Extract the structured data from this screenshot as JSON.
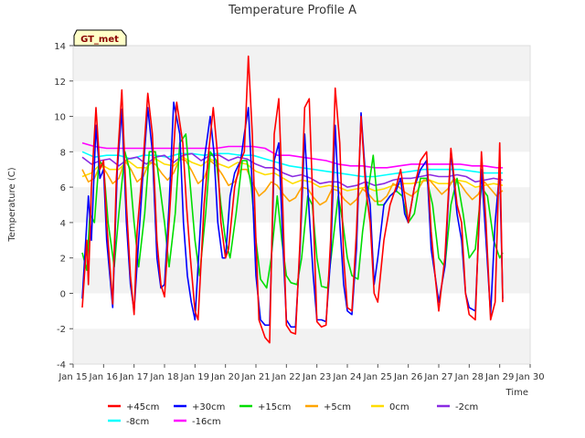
{
  "chart_data": {
    "type": "line",
    "title": "Temperature Profile A",
    "xlabel": "Time",
    "ylabel": "Temperature (C)",
    "badge": "GT_met",
    "ylim": [
      -4,
      14
    ],
    "yticks": [
      -4,
      -2,
      0,
      2,
      4,
      6,
      8,
      10,
      12,
      14
    ],
    "xlim": [
      15,
      30
    ],
    "xticks": [
      {
        "pos": 15,
        "label": "Jan 15"
      },
      {
        "pos": 16,
        "label": "Jan 16"
      },
      {
        "pos": 17,
        "label": "Jan 17"
      },
      {
        "pos": 18,
        "label": "Jan 18"
      },
      {
        "pos": 19,
        "label": "Jan 19"
      },
      {
        "pos": 20,
        "label": "Jan 20"
      },
      {
        "pos": 21,
        "label": "Jan 21"
      },
      {
        "pos": 22,
        "label": "Jan 22"
      },
      {
        "pos": 23,
        "label": "Jan 23"
      },
      {
        "pos": 24,
        "label": "Jan 24"
      },
      {
        "pos": 25,
        "label": "Jan 25"
      },
      {
        "pos": 26,
        "label": "Jan 26"
      },
      {
        "pos": 27,
        "label": "Jan 27"
      },
      {
        "pos": 28,
        "label": "Jan 28"
      },
      {
        "pos": 29,
        "label": "Jan 29"
      },
      {
        "pos": 30,
        "label": "Jan 30"
      }
    ],
    "grid": "alternating horizontal bands",
    "legend_position": "bottom",
    "series": [
      {
        "name": "+45cm",
        "color": "#ff0000",
        "x": [
          15.3,
          15.45,
          15.5,
          15.6,
          15.75,
          15.88,
          16.0,
          16.1,
          16.3,
          16.42,
          16.6,
          16.75,
          16.88,
          17.0,
          17.1,
          17.3,
          17.45,
          17.6,
          17.75,
          17.88,
          18.0,
          18.2,
          18.4,
          18.6,
          18.72,
          18.85,
          19.0,
          19.1,
          19.3,
          19.45,
          19.6,
          19.73,
          19.85,
          20.0,
          20.1,
          20.3,
          20.5,
          20.62,
          20.75,
          20.88,
          21.0,
          21.1,
          21.3,
          21.45,
          21.6,
          21.75,
          21.88,
          22.0,
          22.15,
          22.3,
          22.45,
          22.6,
          22.75,
          22.88,
          23.0,
          23.15,
          23.3,
          23.45,
          23.6,
          23.75,
          23.88,
          24.0,
          24.15,
          24.3,
          24.45,
          24.6,
          24.75,
          24.88,
          25.0,
          25.2,
          25.4,
          25.6,
          25.75,
          25.88,
          26.0,
          26.2,
          26.4,
          26.6,
          26.75,
          26.88,
          27.0,
          27.2,
          27.4,
          27.6,
          27.75,
          27.88,
          28.0,
          28.2,
          28.4,
          28.55,
          28.7,
          28.85,
          29.0,
          29.1
        ],
        "y": [
          -0.8,
          3.0,
          0.5,
          6.0,
          10.5,
          7.0,
          7.5,
          4.0,
          -0.6,
          6.5,
          11.5,
          5.0,
          1.0,
          -1.2,
          3.5,
          7.5,
          11.3,
          9.0,
          3.0,
          0.5,
          -0.2,
          5.5,
          10.8,
          8.5,
          5.0,
          2.0,
          -1.0,
          -1.5,
          5.0,
          8.0,
          10.5,
          8.0,
          4.0,
          2.0,
          2.5,
          6.0,
          7.5,
          8.0,
          13.4,
          9.0,
          3.0,
          -1.5,
          -2.5,
          -2.8,
          9.0,
          11.0,
          5.0,
          -1.8,
          -2.2,
          -2.3,
          3.0,
          10.5,
          11.0,
          4.5,
          -1.6,
          -1.9,
          -1.8,
          3.0,
          11.6,
          8.5,
          2.0,
          -0.8,
          -1.0,
          3.5,
          10.0,
          6.0,
          4.0,
          0.0,
          -0.5,
          3.0,
          5.0,
          6.0,
          7.0,
          5.5,
          4.0,
          6.0,
          7.5,
          8.0,
          3.5,
          1.0,
          -1.0,
          2.0,
          8.2,
          5.0,
          4.0,
          0.0,
          -1.2,
          -1.5,
          8.0,
          4.0,
          -1.5,
          -0.5,
          8.5,
          -0.5
        ]
      },
      {
        "name": "+30cm",
        "color": "#0000ff",
        "x": [
          15.3,
          15.5,
          15.6,
          15.75,
          15.88,
          16.0,
          16.1,
          16.3,
          16.45,
          16.6,
          16.75,
          16.88,
          17.0,
          17.15,
          17.3,
          17.45,
          17.6,
          17.75,
          17.88,
          18.0,
          18.15,
          18.3,
          18.5,
          18.62,
          18.75,
          18.88,
          19.0,
          19.15,
          19.3,
          19.5,
          19.62,
          19.75,
          19.9,
          20.0,
          20.15,
          20.3,
          20.5,
          20.62,
          20.75,
          20.88,
          21.0,
          21.15,
          21.3,
          21.45,
          21.6,
          21.75,
          21.88,
          22.0,
          22.15,
          22.3,
          22.45,
          22.6,
          22.75,
          22.88,
          23.0,
          23.15,
          23.3,
          23.45,
          23.6,
          23.75,
          23.88,
          24.0,
          24.15,
          24.3,
          24.45,
          24.6,
          24.75,
          24.88,
          25.0,
          25.2,
          25.4,
          25.6,
          25.75,
          25.88,
          26.0,
          26.2,
          26.4,
          26.6,
          26.75,
          26.88,
          27.0,
          27.2,
          27.4,
          27.6,
          27.75,
          27.88,
          28.0,
          28.2,
          28.4,
          28.55,
          28.7,
          28.85,
          29.0,
          29.1
        ],
        "y": [
          -0.3,
          5.5,
          3.0,
          9.5,
          6.5,
          7.0,
          3.0,
          -0.8,
          7.0,
          10.4,
          4.0,
          0.5,
          -1.0,
          3.0,
          7.0,
          10.5,
          8.0,
          2.0,
          0.3,
          0.5,
          5.0,
          10.8,
          9.0,
          4.0,
          1.0,
          -0.5,
          -1.5,
          3.0,
          7.5,
          10.0,
          8.0,
          4.0,
          2.0,
          2.0,
          5.5,
          6.8,
          7.5,
          9.0,
          10.5,
          6.0,
          1.0,
          -1.5,
          -1.8,
          -1.8,
          7.5,
          8.5,
          3.0,
          -1.5,
          -1.9,
          -1.9,
          2.5,
          9.0,
          4.5,
          1.0,
          -1.5,
          -1.5,
          -1.6,
          2.0,
          9.5,
          4.0,
          0.5,
          -1.0,
          -1.2,
          2.5,
          10.2,
          6.5,
          5.0,
          0.5,
          2.0,
          5.0,
          5.5,
          5.8,
          6.5,
          4.5,
          4.0,
          6.0,
          7.0,
          7.5,
          2.5,
          1.0,
          -0.5,
          1.5,
          8.0,
          4.5,
          3.0,
          0.0,
          -0.8,
          -1.0,
          7.0,
          3.0,
          -1.2,
          4.0,
          7.0,
          -0.3
        ]
      },
      {
        "name": "+15cm",
        "color": "#00dd00",
        "x": [
          15.3,
          15.45,
          15.55,
          15.7,
          15.85,
          16.0,
          16.15,
          16.35,
          16.5,
          16.7,
          16.85,
          17.0,
          17.15,
          17.35,
          17.5,
          17.7,
          17.85,
          18.0,
          18.15,
          18.35,
          18.5,
          18.7,
          18.85,
          19.0,
          19.15,
          19.35,
          19.5,
          19.7,
          19.85,
          20.0,
          20.15,
          20.35,
          20.55,
          20.7,
          20.85,
          21.0,
          21.15,
          21.35,
          21.5,
          21.7,
          21.85,
          22.0,
          22.15,
          22.35,
          22.5,
          22.7,
          22.85,
          23.0,
          23.15,
          23.35,
          23.5,
          23.7,
          23.85,
          24.0,
          24.15,
          24.35,
          24.5,
          24.7,
          24.85,
          25.0,
          25.2,
          25.4,
          25.6,
          25.8,
          26.0,
          26.2,
          26.4,
          26.6,
          26.8,
          27.0,
          27.2,
          27.4,
          27.6,
          27.8,
          28.0,
          28.2,
          28.4,
          28.6,
          28.8,
          29.0,
          29.1
        ],
        "y": [
          2.3,
          1.3,
          4.5,
          4.0,
          7.5,
          7.2,
          4.0,
          1.5,
          4.5,
          8.0,
          7.0,
          4.0,
          1.5,
          4.5,
          8.0,
          8.0,
          6.0,
          4.0,
          1.5,
          4.5,
          8.5,
          9.0,
          6.0,
          3.0,
          1.0,
          4.5,
          8.0,
          7.5,
          5.0,
          3.0,
          2.0,
          4.5,
          7.5,
          7.5,
          6.0,
          3.0,
          0.8,
          0.3,
          2.0,
          5.5,
          3.0,
          1.0,
          0.6,
          0.5,
          2.0,
          5.5,
          5.0,
          2.0,
          0.4,
          0.3,
          2.5,
          5.5,
          4.0,
          2.0,
          1.0,
          0.8,
          3.5,
          6.0,
          7.8,
          5.0,
          5.0,
          5.5,
          5.8,
          5.5,
          4.0,
          4.5,
          6.5,
          6.5,
          5.0,
          2.0,
          1.5,
          5.0,
          6.5,
          4.5,
          2.0,
          2.5,
          6.0,
          5.5,
          3.0,
          2.0,
          2.3
        ]
      },
      {
        "name": "+5cm",
        "color": "#ffa500",
        "x": [
          15.3,
          15.5,
          15.7,
          15.9,
          16.1,
          16.3,
          16.5,
          16.7,
          16.9,
          17.1,
          17.3,
          17.5,
          17.7,
          17.9,
          18.1,
          18.3,
          18.5,
          18.7,
          18.9,
          19.1,
          19.3,
          19.5,
          19.7,
          19.9,
          20.1,
          20.3,
          20.5,
          20.7,
          20.9,
          21.1,
          21.3,
          21.5,
          21.7,
          21.9,
          22.1,
          22.3,
          22.5,
          22.7,
          22.9,
          23.1,
          23.3,
          23.5,
          23.7,
          23.9,
          24.1,
          24.3,
          24.5,
          24.7,
          24.9,
          25.1,
          25.3,
          25.5,
          25.7,
          25.9,
          26.1,
          26.3,
          26.5,
          26.7,
          26.9,
          27.1,
          27.3,
          27.5,
          27.7,
          27.9,
          28.1,
          28.3,
          28.5,
          28.7,
          28.9,
          29.0,
          29.1
        ],
        "y": [
          7.0,
          6.3,
          6.5,
          7.3,
          6.8,
          6.2,
          6.5,
          7.5,
          7.0,
          6.3,
          6.6,
          7.4,
          7.3,
          6.8,
          6.4,
          6.8,
          7.6,
          7.5,
          6.9,
          6.2,
          6.5,
          7.5,
          7.2,
          6.7,
          6.1,
          6.3,
          7.0,
          7.0,
          6.2,
          5.5,
          5.8,
          6.3,
          6.1,
          5.6,
          5.2,
          5.4,
          6.0,
          5.9,
          5.4,
          5.0,
          5.2,
          5.9,
          5.8,
          5.3,
          5.0,
          5.3,
          5.9,
          5.6,
          5.2,
          5.2,
          5.5,
          6.2,
          6.0,
          5.7,
          5.5,
          5.8,
          6.4,
          6.4,
          6.0,
          5.6,
          5.9,
          6.5,
          6.2,
          5.7,
          5.3,
          5.6,
          6.3,
          5.9,
          5.5,
          5.7,
          5.8
        ]
      },
      {
        "name": "0cm",
        "color": "#ffdd00",
        "x": [
          15.3,
          15.6,
          15.9,
          16.2,
          16.5,
          16.8,
          17.1,
          17.4,
          17.7,
          18.0,
          18.3,
          18.6,
          18.9,
          19.2,
          19.5,
          19.8,
          20.1,
          20.4,
          20.7,
          21.0,
          21.3,
          21.6,
          21.9,
          22.2,
          22.5,
          22.8,
          23.1,
          23.4,
          23.7,
          24.0,
          24.3,
          24.6,
          24.9,
          25.2,
          25.5,
          25.8,
          26.1,
          26.4,
          26.7,
          27.0,
          27.3,
          27.6,
          27.9,
          28.2,
          28.5,
          28.8,
          29.1
        ],
        "y": [
          6.6,
          6.8,
          7.3,
          7.0,
          7.0,
          7.5,
          7.1,
          7.1,
          7.6,
          7.3,
          7.2,
          7.7,
          7.4,
          7.2,
          7.6,
          7.3,
          7.1,
          7.4,
          7.3,
          6.9,
          6.7,
          6.8,
          6.5,
          6.2,
          6.4,
          6.3,
          6.0,
          6.1,
          6.0,
          5.8,
          5.9,
          6.0,
          5.8,
          5.9,
          6.1,
          6.2,
          6.2,
          6.3,
          6.4,
          6.2,
          6.2,
          6.4,
          6.3,
          6.0,
          6.1,
          6.2,
          6.1
        ]
      },
      {
        "name": "-2cm",
        "color": "#8a2be2",
        "x": [
          15.3,
          15.6,
          15.9,
          16.2,
          16.5,
          16.8,
          17.1,
          17.4,
          17.7,
          18.0,
          18.3,
          18.6,
          18.9,
          19.2,
          19.5,
          19.8,
          20.1,
          20.4,
          20.7,
          21.0,
          21.3,
          21.6,
          21.9,
          22.2,
          22.5,
          22.8,
          23.1,
          23.4,
          23.7,
          24.0,
          24.3,
          24.6,
          24.9,
          25.2,
          25.5,
          25.8,
          26.1,
          26.4,
          26.7,
          27.0,
          27.3,
          27.6,
          27.9,
          28.2,
          28.5,
          28.8,
          29.1
        ],
        "y": [
          7.7,
          7.3,
          7.5,
          7.6,
          7.2,
          7.6,
          7.7,
          7.3,
          7.7,
          7.8,
          7.4,
          7.8,
          7.9,
          7.5,
          7.8,
          7.8,
          7.5,
          7.7,
          7.6,
          7.3,
          7.1,
          7.1,
          6.8,
          6.6,
          6.7,
          6.5,
          6.2,
          6.3,
          6.3,
          6.0,
          6.1,
          6.3,
          6.1,
          6.2,
          6.4,
          6.5,
          6.5,
          6.6,
          6.7,
          6.6,
          6.6,
          6.7,
          6.6,
          6.3,
          6.4,
          6.5,
          6.4
        ]
      },
      {
        "name": "-8cm",
        "color": "#00ffff",
        "x": [
          15.3,
          15.7,
          16.1,
          16.5,
          16.9,
          17.3,
          17.7,
          18.1,
          18.5,
          18.9,
          19.3,
          19.7,
          20.1,
          20.5,
          20.9,
          21.3,
          21.7,
          22.1,
          22.5,
          22.9,
          23.3,
          23.7,
          24.1,
          24.5,
          24.9,
          25.3,
          25.7,
          26.1,
          26.5,
          26.9,
          27.3,
          27.7,
          28.1,
          28.5,
          28.9,
          29.1
        ],
        "y": [
          8.0,
          7.7,
          7.8,
          7.8,
          7.6,
          7.8,
          7.8,
          7.7,
          7.9,
          7.9,
          7.8,
          7.9,
          7.9,
          7.8,
          7.8,
          7.6,
          7.4,
          7.2,
          7.1,
          7.0,
          6.9,
          6.8,
          6.7,
          6.6,
          6.6,
          6.7,
          6.8,
          6.9,
          7.0,
          7.0,
          7.0,
          7.0,
          6.9,
          6.8,
          6.8,
          6.8
        ]
      },
      {
        "name": "-16cm",
        "color": "#ff00ff",
        "x": [
          15.3,
          15.7,
          16.1,
          16.5,
          16.9,
          17.3,
          17.7,
          18.1,
          18.5,
          18.9,
          19.3,
          19.7,
          20.1,
          20.5,
          20.9,
          21.3,
          21.7,
          22.1,
          22.5,
          22.9,
          23.3,
          23.7,
          24.1,
          24.5,
          24.9,
          25.3,
          25.7,
          26.1,
          26.5,
          26.9,
          27.3,
          27.7,
          28.1,
          28.5,
          28.9,
          29.1
        ],
        "y": [
          8.5,
          8.3,
          8.2,
          8.2,
          8.2,
          8.2,
          8.2,
          8.2,
          8.2,
          8.2,
          8.2,
          8.2,
          8.3,
          8.3,
          8.3,
          8.2,
          7.8,
          7.8,
          7.7,
          7.6,
          7.5,
          7.3,
          7.2,
          7.2,
          7.1,
          7.1,
          7.2,
          7.3,
          7.3,
          7.3,
          7.3,
          7.3,
          7.2,
          7.2,
          7.1,
          7.1
        ]
      }
    ]
  }
}
